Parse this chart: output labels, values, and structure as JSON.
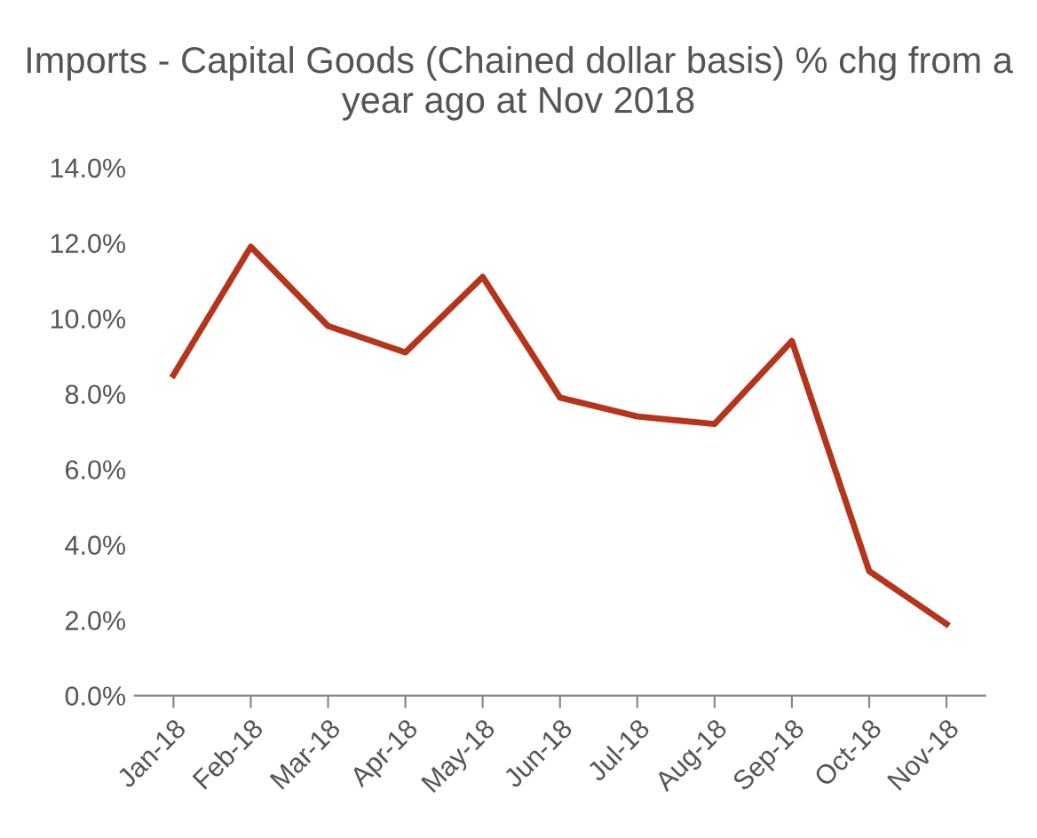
{
  "chart_data": {
    "type": "line",
    "title": "Imports - Capital Goods (Chained dollar basis) % chg from a year ago at Nov 2018",
    "categories": [
      "Jan-18",
      "Feb-18",
      "Mar-18",
      "Apr-18",
      "May-18",
      "Jun-18",
      "Jul-18",
      "Aug-18",
      "Sep-18",
      "Oct-18",
      "Nov-18"
    ],
    "series": [
      {
        "color": "#b5341c",
        "values": [
          8.5,
          11.9,
          9.8,
          9.1,
          11.1,
          7.9,
          7.4,
          7.2,
          9.4,
          3.3,
          1.9
        ]
      }
    ],
    "ylim": [
      0,
      14
    ],
    "yticks": [
      {
        "value": 0,
        "label": "0.0%"
      },
      {
        "value": 2,
        "label": "2.0%"
      },
      {
        "value": 4,
        "label": "4.0%"
      },
      {
        "value": 6,
        "label": "6.0%"
      },
      {
        "value": 8,
        "label": "8.0%"
      },
      {
        "value": 10,
        "label": "10.0%"
      },
      {
        "value": 12,
        "label": "12.0%"
      },
      {
        "value": 14,
        "label": "14.0%"
      }
    ],
    "grid": false,
    "legend": false,
    "marker": "none",
    "line_style": "solid"
  }
}
